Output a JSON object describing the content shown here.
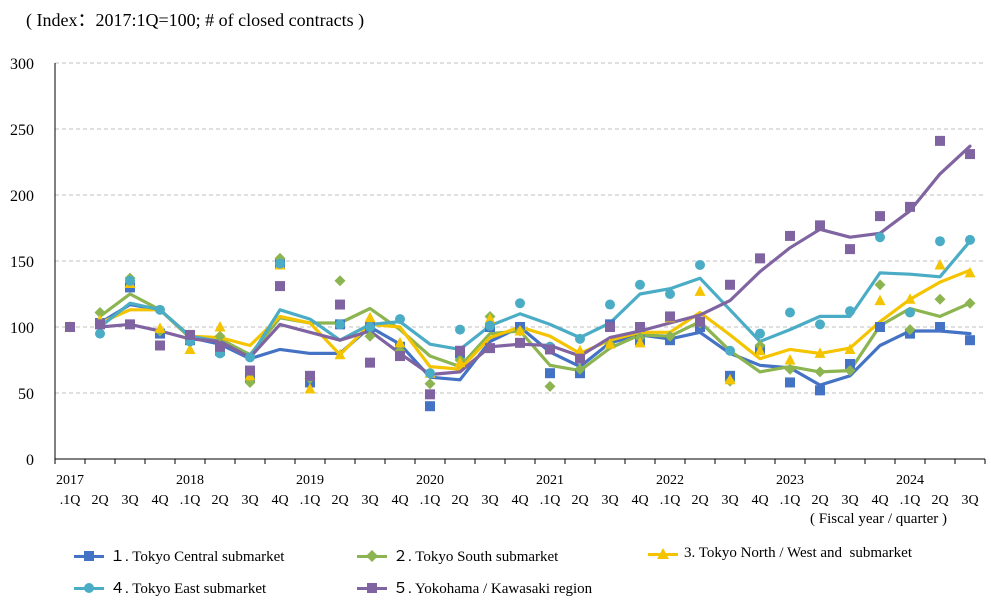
{
  "chart_data": {
    "type": "line",
    "title": "( Index：2017:1Q=100; # of closed contracts )",
    "xlabel": "( Fiscal year / quarter )",
    "ylabel": "",
    "ylim": [
      0,
      300
    ],
    "yticks": [
      0,
      50,
      100,
      150,
      200,
      250,
      300
    ],
    "grid": true,
    "x_quarters": [
      ".1Q",
      "2Q",
      "3Q",
      "4Q",
      ".1Q",
      "2Q",
      "3Q",
      "4Q",
      ".1Q",
      "2Q",
      "3Q",
      "4Q",
      ".1Q",
      "2Q",
      "3Q",
      "4Q",
      ".1Q",
      "2Q",
      "3Q",
      "4Q",
      ".1Q",
      "2Q",
      "3Q",
      "4Q",
      ".1Q",
      "2Q",
      "3Q",
      "4Q",
      ".1Q",
      "2Q",
      "3Q"
    ],
    "x_years": [
      {
        "label": "2017",
        "index": 0
      },
      {
        "label": "2018",
        "index": 4
      },
      {
        "label": "2019",
        "index": 8
      },
      {
        "label": "2020",
        "index": 12
      },
      {
        "label": "2021",
        "index": 16
      },
      {
        "label": "2022",
        "index": 20
      },
      {
        "label": "2023",
        "index": 24
      },
      {
        "label": "2024",
        "index": 28
      }
    ],
    "series": [
      {
        "name": "1. Tokyo Central submarket",
        "legend": "１. Tokyo Central submarket",
        "marker": "square",
        "color": "#4472C4",
        "values": [
          100,
          103,
          130,
          95,
          90,
          82,
          62,
          148,
          58,
          102,
          100,
          85,
          40,
          80,
          100,
          100,
          65,
          65,
          102,
          90,
          90,
          100,
          63,
          83,
          58,
          52,
          72,
          100,
          95,
          100,
          90
        ],
        "trend": [
          null,
          103,
          117,
          113,
          92,
          87,
          76,
          83,
          80,
          80,
          100,
          87,
          62,
          60,
          89,
          100,
          81,
          70,
          88,
          94,
          91,
          96,
          80,
          71,
          69,
          56,
          63,
          86,
          97,
          97,
          95
        ]
      },
      {
        "name": "2. Tokyo South submarket",
        "legend": "２. Tokyo South submarket",
        "marker": "diamond",
        "color": "#8CB450",
        "values": [
          100,
          111,
          137,
          97,
          92,
          93,
          58,
          152,
          61,
          135,
          93,
          82,
          57,
          75,
          108,
          97,
          55,
          68,
          87,
          92,
          93,
          103,
          59,
          86,
          68,
          66,
          67,
          132,
          98,
          121,
          118
        ],
        "trend": [
          null,
          108,
          125,
          113,
          92,
          91,
          79,
          107,
          103,
          103,
          114,
          98,
          78,
          70,
          95,
          97,
          71,
          67,
          84,
          94,
          93,
          104,
          82,
          66,
          70,
          66,
          67,
          101,
          114,
          108,
          118
        ]
      },
      {
        "name": "3. Tokyo North / West and submarket",
        "legend": "3. Tokyo North / West and  submarket",
        "marker": "triangle",
        "color": "#F5C400",
        "values": [
          100,
          105,
          133,
          99,
          83,
          100,
          63,
          147,
          53,
          79,
          107,
          88,
          65,
          73,
          106,
          97,
          85,
          82,
          87,
          88,
          107,
          127,
          60,
          82,
          75,
          80,
          83,
          120,
          121,
          147,
          141
        ],
        "trend": [
          null,
          103,
          113,
          113,
          93,
          92,
          86,
          108,
          103,
          79,
          102,
          100,
          70,
          68,
          92,
          100,
          93,
          80,
          90,
          96,
          96,
          111,
          94,
          76,
          83,
          80,
          84,
          104,
          121,
          134,
          143
        ]
      },
      {
        "name": "4. Tokyo East submarket",
        "legend": "４. Tokyo East submarket",
        "marker": "circle",
        "color": "#4BACC6",
        "values": [
          100,
          95,
          135,
          113,
          89,
          80,
          77,
          148,
          63,
          102,
          100,
          106,
          65,
          98,
          101,
          118,
          85,
          91,
          117,
          132,
          125,
          147,
          82,
          95,
          111,
          102,
          112,
          168,
          111,
          165,
          166
        ],
        "trend": [
          null,
          100,
          118,
          113,
          93,
          89,
          77,
          113,
          106,
          90,
          102,
          104,
          87,
          83,
          101,
          110,
          102,
          92,
          103,
          125,
          129,
          137,
          113,
          89,
          98,
          108,
          108,
          141,
          140,
          138,
          165
        ]
      },
      {
        "name": "5. Yokohama / Kawasaki region",
        "legend": "５. Yokohama / Kawasaki region",
        "marker": "square",
        "color": "#8064A2",
        "values": [
          100,
          102,
          102,
          86,
          94,
          85,
          67,
          131,
          63,
          117,
          73,
          78,
          49,
          82,
          84,
          88,
          83,
          76,
          100,
          100,
          108,
          104,
          132,
          152,
          169,
          177,
          159,
          184,
          191,
          241,
          231
        ],
        "trend": [
          null,
          100,
          102,
          97,
          91,
          89,
          77,
          102,
          96,
          90,
          97,
          80,
          64,
          66,
          85,
          87,
          86,
          78,
          92,
          97,
          103,
          109,
          120,
          142,
          160,
          174,
          168,
          171,
          188,
          216,
          237
        ]
      }
    ]
  }
}
